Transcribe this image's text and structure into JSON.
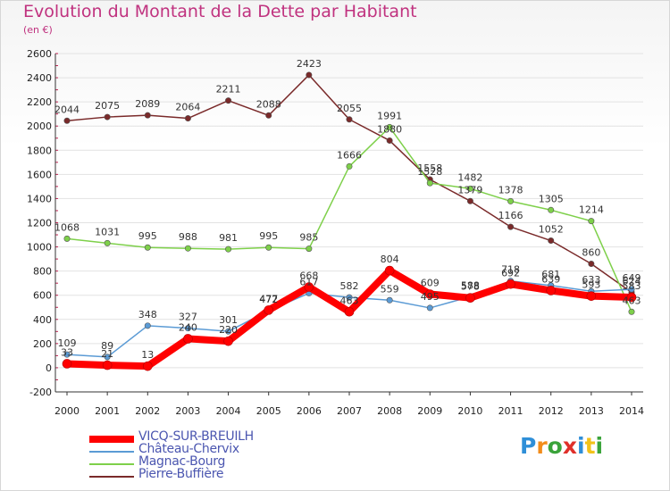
{
  "title": "Evolution du Montant de la Dette par Habitant",
  "subtitle": "(en €)",
  "logo_text": "Proxiti",
  "chart_data": {
    "type": "line",
    "title": "Evolution du Montant de la Dette par Habitant",
    "subtitle": "(en €)",
    "ylim": [
      -200,
      2600
    ],
    "yticks": [
      -200,
      0,
      200,
      400,
      600,
      800,
      1000,
      1200,
      1400,
      1600,
      1800,
      2000,
      2200,
      2400,
      2600
    ],
    "grid": "horizontal",
    "legend_position": "bottom-left",
    "x": [
      "2000",
      "2001",
      "2002",
      "2003",
      "2004",
      "2005",
      "2006",
      "2007",
      "2008",
      "2009",
      "2010",
      "2011",
      "2012",
      "2013",
      "2014"
    ],
    "series": [
      {
        "name": "VICQ-SUR-BREUILH",
        "color": "#ff0000",
        "values": [
          33,
          21,
          13,
          240,
          220,
          477,
          668,
          463,
          804,
          609,
          578,
          692,
          639,
          593,
          583
        ]
      },
      {
        "name": "Château-Chervix",
        "color": "#5b9bd5",
        "values": [
          109,
          89,
          348,
          327,
          301,
          472,
          617,
          582,
          559,
          495,
          588,
          718,
          681,
          633,
          649
        ]
      },
      {
        "name": "Magnac-Bourg",
        "color": "#7ed04a",
        "values": [
          1068,
          1031,
          995,
          988,
          981,
          995,
          985,
          1666,
          1991,
          1528,
          1482,
          1378,
          1305,
          1214,
          463
        ]
      },
      {
        "name": "Pierre-Buffière",
        "color": "#7a2a2a",
        "values": [
          2044,
          2075,
          2089,
          2064,
          2211,
          2088,
          2423,
          2055,
          1880,
          1558,
          1379,
          1166,
          1052,
          860,
          624
        ]
      }
    ]
  }
}
